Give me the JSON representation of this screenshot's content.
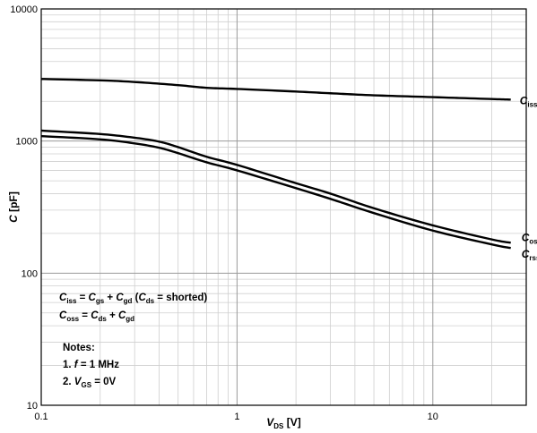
{
  "chart_data": {
    "type": "line",
    "x_scale": "log",
    "y_scale": "log",
    "xlim": [
      0.1,
      30
    ],
    "ylim": [
      10,
      10000
    ],
    "x_ticks": [
      "0.1",
      "1",
      "10"
    ],
    "y_ticks": [
      "10",
      "100",
      "1000",
      "10000"
    ],
    "xlabel": {
      "symbol": "V",
      "sub": "DS",
      "unit": " [V]"
    },
    "ylabel": {
      "symbol": "C",
      "unit": " [pF]"
    },
    "grid": true,
    "series": [
      {
        "name": "Ciss",
        "label": {
          "symbol": "C",
          "sub": "iss"
        },
        "points": [
          [
            0.1,
            2950
          ],
          [
            0.2,
            2880
          ],
          [
            0.3,
            2800
          ],
          [
            0.5,
            2650
          ],
          [
            0.7,
            2530
          ],
          [
            1,
            2480
          ],
          [
            2,
            2370
          ],
          [
            3,
            2300
          ],
          [
            5,
            2220
          ],
          [
            10,
            2150
          ],
          [
            20,
            2080
          ],
          [
            25,
            2060
          ]
        ]
      },
      {
        "name": "Coss",
        "label": {
          "symbol": "C",
          "sub": "oss"
        },
        "points": [
          [
            0.1,
            1200
          ],
          [
            0.2,
            1130
          ],
          [
            0.3,
            1060
          ],
          [
            0.4,
            990
          ],
          [
            0.5,
            900
          ],
          [
            0.7,
            760
          ],
          [
            1,
            660
          ],
          [
            2,
            480
          ],
          [
            3,
            400
          ],
          [
            5,
            310
          ],
          [
            10,
            230
          ],
          [
            20,
            180
          ],
          [
            25,
            170
          ]
        ]
      },
      {
        "name": "Crss",
        "label": {
          "symbol": "C",
          "sub": "rss"
        },
        "points": [
          [
            0.1,
            1090
          ],
          [
            0.2,
            1030
          ],
          [
            0.3,
            960
          ],
          [
            0.4,
            890
          ],
          [
            0.5,
            810
          ],
          [
            0.7,
            690
          ],
          [
            1,
            600
          ],
          [
            2,
            440
          ],
          [
            3,
            365
          ],
          [
            5,
            285
          ],
          [
            10,
            210
          ],
          [
            20,
            165
          ],
          [
            25,
            155
          ]
        ]
      }
    ],
    "annotations": [
      {
        "parts": [
          [
            "i",
            "C"
          ],
          [
            "s",
            "iss"
          ],
          [
            "n",
            " = "
          ],
          [
            "i",
            "C"
          ],
          [
            "s",
            "gs"
          ],
          [
            "n",
            " + "
          ],
          [
            "i",
            "C"
          ],
          [
            "s",
            "gd"
          ],
          [
            "n",
            " ("
          ],
          [
            "i",
            "C"
          ],
          [
            "s",
            "ds"
          ],
          [
            "n",
            " = shorted)"
          ]
        ]
      },
      {
        "parts": [
          [
            "i",
            "C"
          ],
          [
            "s",
            "oss"
          ],
          [
            "n",
            " = "
          ],
          [
            "i",
            "C"
          ],
          [
            "s",
            "ds"
          ],
          [
            "n",
            " + "
          ],
          [
            "i",
            "C"
          ],
          [
            "s",
            "gd"
          ]
        ]
      }
    ],
    "notes": [
      {
        "parts": [
          [
            "n",
            "Notes:"
          ]
        ]
      },
      {
        "parts": [
          [
            "n",
            "1. "
          ],
          [
            "i",
            "f"
          ],
          [
            "n",
            " = 1 MHz"
          ]
        ]
      },
      {
        "parts": [
          [
            "n",
            "2. "
          ],
          [
            "i",
            "V"
          ],
          [
            "s",
            "GS"
          ],
          [
            "n",
            " = 0V"
          ]
        ]
      }
    ]
  }
}
